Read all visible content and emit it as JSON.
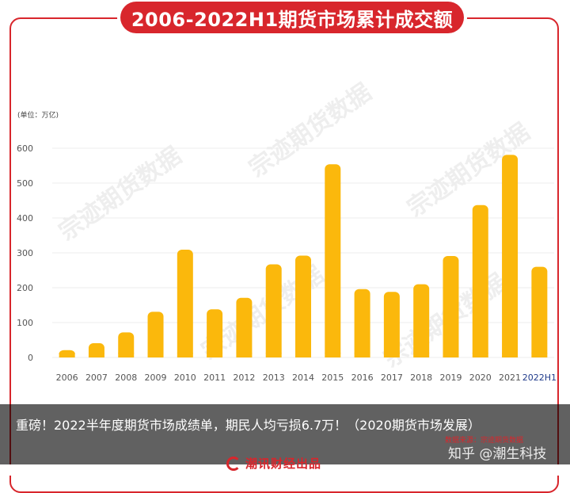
{
  "chart_data": {
    "type": "bar",
    "title": "2006-2022H1期货市场累计成交额",
    "unit": "(单位：万亿)",
    "categories": [
      "2006",
      "2007",
      "2008",
      "2009",
      "2010",
      "2011",
      "2012",
      "2013",
      "2014",
      "2015",
      "2016",
      "2017",
      "2018",
      "2019",
      "2020",
      "2021",
      "2022H1"
    ],
    "values": [
      21,
      41,
      72,
      131,
      309,
      138,
      171,
      267,
      292,
      554,
      196,
      188,
      210,
      291,
      437,
      581,
      260
    ],
    "ylim": [
      0,
      600
    ],
    "yticks": [
      0,
      100,
      200,
      300,
      400,
      500,
      600
    ],
    "grid": true,
    "bar_color": "#fbb80c"
  },
  "watermark": "宗迹期货数据",
  "caption": "重磅！2022半年度期货市场成绩单，期民人均亏损6.7万！（2020期货市场发展）",
  "source": "数据来源：宗迹期货数据",
  "zhihu_mark": "知乎 @潮生科技",
  "footer": "潮讯财经出品",
  "colors": {
    "accent": "#d8262c",
    "bar": "#fbb80c"
  }
}
